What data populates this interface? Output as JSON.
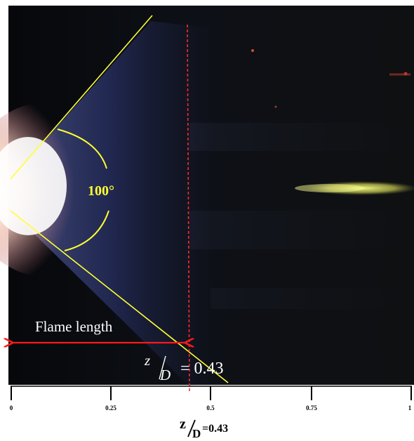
{
  "figure": {
    "angle_label": "100°",
    "flame_length_label": "Flame length",
    "z_over_d_value_label": "= 0.43",
    "z_symbol": "z",
    "d_symbol": "D",
    "bottom_caption": {
      "z": "z",
      "d": "D",
      "value": "=0.43"
    },
    "axis_ticks": [
      "0",
      "0.25",
      "0.5",
      "0.75",
      "1"
    ],
    "colors": {
      "background_dark": "#0c0d10",
      "flame_core": "#fff8ee",
      "flame_blue": "#5a6bd8",
      "guide_line": "#ffff33",
      "arrow": "#ff1a1a",
      "dashed_marker": "#ff2a2a",
      "yellow_streak": "#e8f06a"
    }
  }
}
